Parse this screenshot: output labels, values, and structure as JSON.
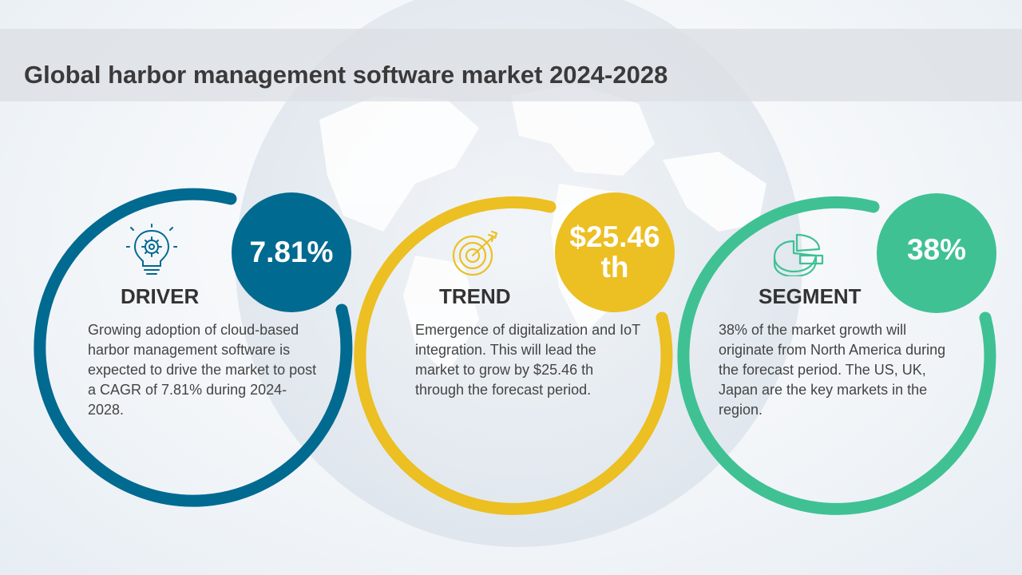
{
  "title": "Global harbor management software market 2024-2028",
  "colors": {
    "driver": "#006a90",
    "trend": "#ecbf22",
    "segment": "#3fc194",
    "title_band": "#dde1e5",
    "text": "#444444"
  },
  "cards": [
    {
      "id": "driver",
      "label": "DRIVER",
      "value": "7.81%",
      "icon": "lightbulb-gear-icon",
      "description": "Growing adoption of cloud-based harbor management software is expected to drive the market to post a CAGR of 7.81% during 2024-2028."
    },
    {
      "id": "trend",
      "label": "TREND",
      "value": "$25.46 th",
      "icon": "target-arrow-icon",
      "description": "Emergence of digitalization and IoT integration. This will lead the market to grow by $25.46 th through the forecast period."
    },
    {
      "id": "segment",
      "label": "SEGMENT",
      "value": "38%",
      "icon": "pie-chart-icon",
      "description": "38% of the market growth will originate from North America during the forecast period. The US, UK, Japan are the key markets in the region."
    }
  ]
}
